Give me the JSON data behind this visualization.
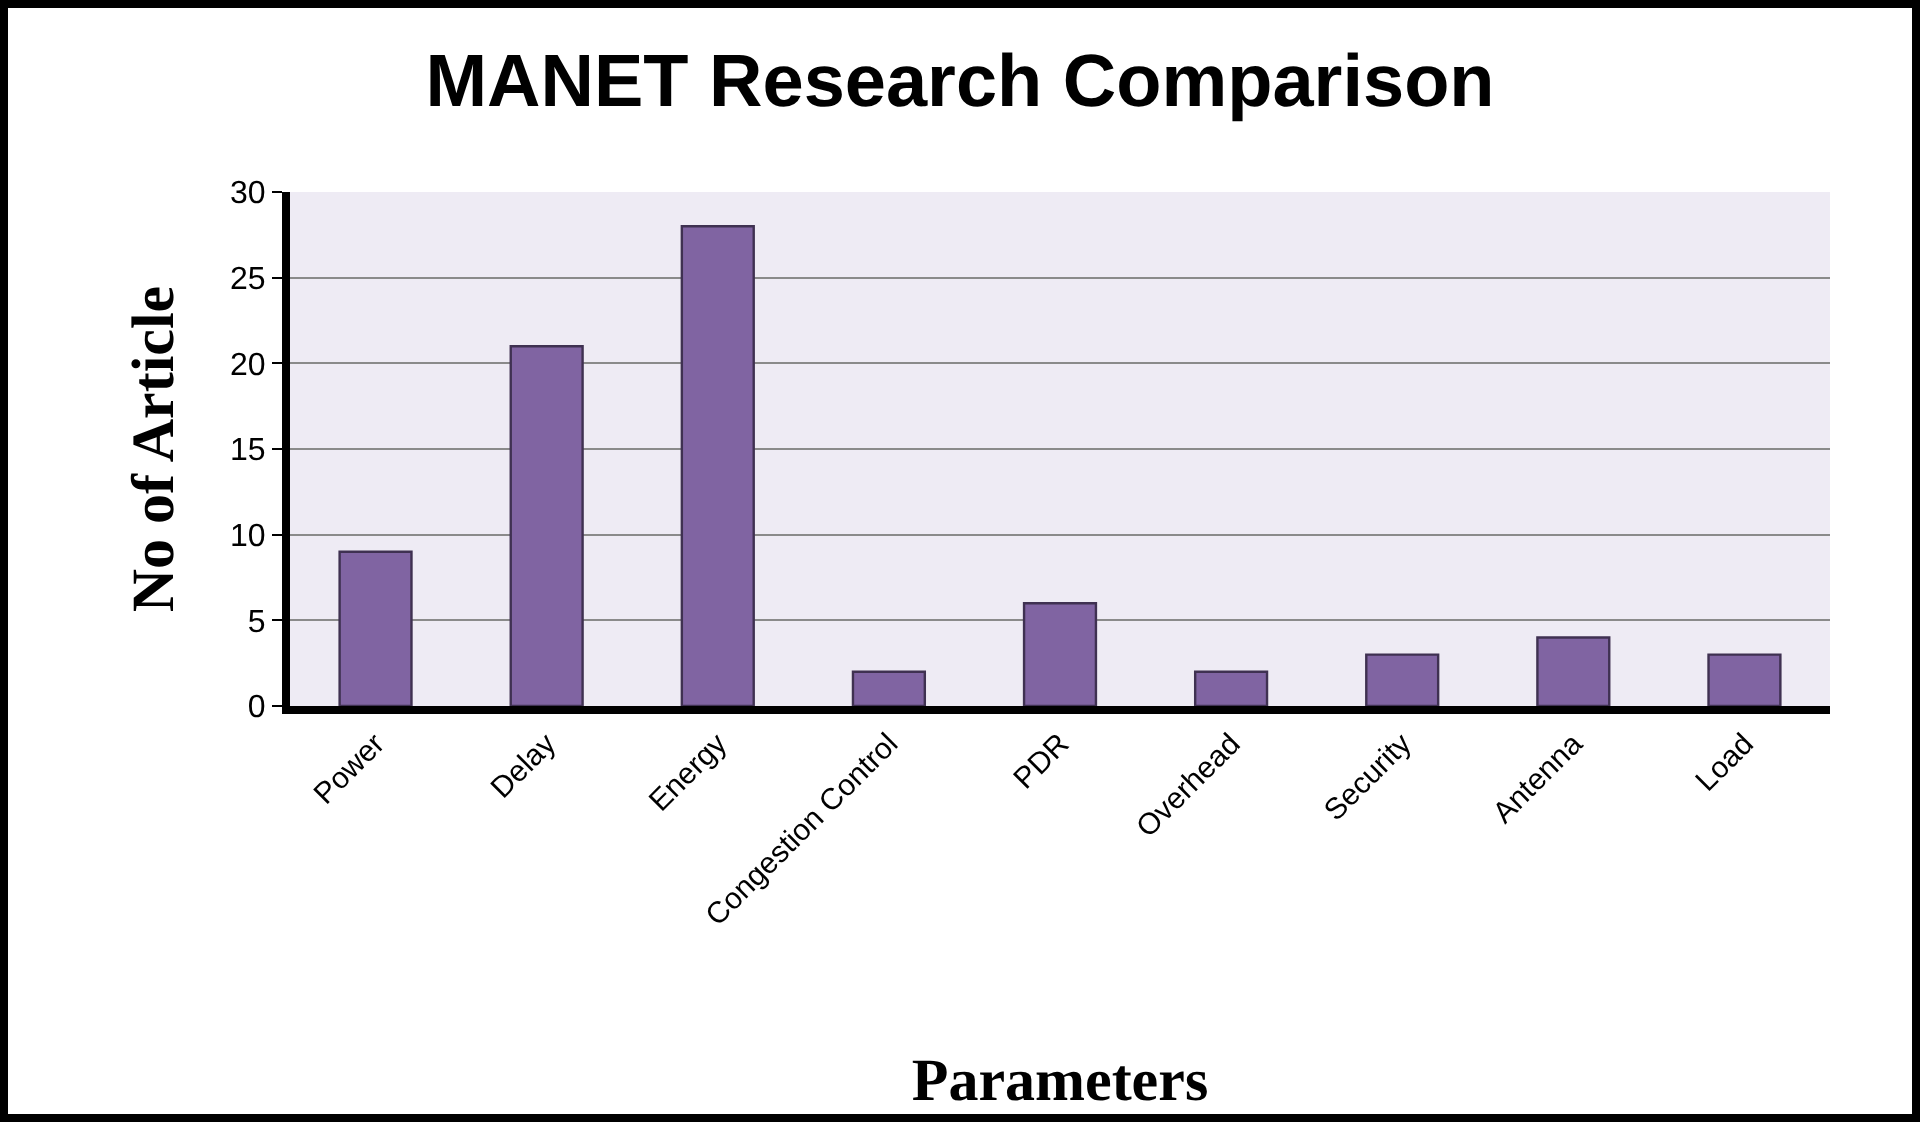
{
  "chart_data": {
    "type": "bar",
    "title": "MANET Research Comparison",
    "xlabel": "Parameters",
    "ylabel": "No of Article",
    "categories": [
      "Power",
      "Delay",
      "Energy",
      "Congestion Control",
      "PDR",
      "Overhead",
      "Security",
      "Antenna",
      "Load"
    ],
    "values": [
      9,
      21,
      28,
      2,
      6,
      2,
      3,
      4,
      3
    ],
    "color": "#8064a2",
    "ylim": [
      0,
      30
    ],
    "yticks": [
      0,
      5,
      10,
      15,
      20,
      25,
      30
    ],
    "grid": "y"
  }
}
